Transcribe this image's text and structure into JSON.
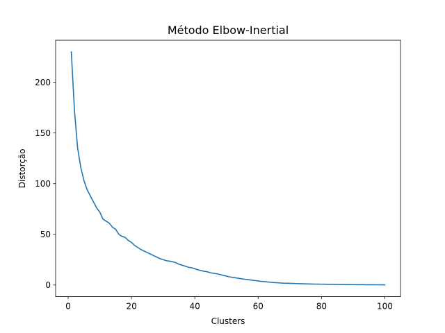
{
  "chart_data": {
    "type": "line",
    "title": "Método Elbow-Inertial",
    "xlabel": "Clusters",
    "ylabel": "Distorção",
    "xlim": [
      -3.95,
      104.95
    ],
    "ylim": [
      -11.5,
      241.5
    ],
    "xticks": [
      0,
      20,
      40,
      60,
      80,
      100
    ],
    "yticks": [
      0,
      50,
      100,
      150,
      200
    ],
    "grid": false,
    "series": [
      {
        "color": "#1f77b4",
        "x": [
          1,
          2,
          3,
          4,
          5,
          6,
          7,
          8,
          9,
          10,
          11,
          12,
          13,
          14,
          15,
          16,
          17,
          18,
          19,
          20,
          21,
          22,
          23,
          24,
          25,
          26,
          27,
          28,
          29,
          30,
          31,
          32,
          33,
          34,
          35,
          36,
          37,
          38,
          39,
          40,
          41,
          42,
          43,
          44,
          45,
          46,
          47,
          48,
          49,
          50,
          51,
          52,
          53,
          54,
          55,
          56,
          57,
          58,
          59,
          60,
          61,
          62,
          63,
          64,
          65,
          66,
          67,
          68,
          69,
          70,
          71,
          72,
          73,
          74,
          75,
          76,
          77,
          78,
          79,
          80,
          81,
          82,
          83,
          84,
          85,
          86,
          87,
          88,
          89,
          90,
          91,
          92,
          93,
          94,
          95,
          96,
          97,
          98,
          99,
          100
        ],
        "y": [
          230,
          172,
          135,
          116,
          103,
          94,
          88,
          82,
          76,
          72,
          65,
          63,
          61,
          57,
          55,
          50,
          48,
          47,
          44,
          42,
          39,
          37,
          35,
          33.5,
          32,
          30.5,
          29,
          27.5,
          26,
          25,
          24,
          23.5,
          23,
          22,
          20.5,
          19.5,
          18.5,
          17.5,
          17,
          16,
          15,
          14.2,
          13.5,
          13,
          12,
          11.5,
          11,
          10.3,
          9.5,
          8.7,
          8,
          7.5,
          7,
          6.5,
          6,
          5.6,
          5.2,
          4.8,
          4.4,
          4,
          3.6,
          3.3,
          3,
          2.7,
          2.4,
          2.2,
          2,
          1.8,
          1.7,
          1.6,
          1.5,
          1.4,
          1.3,
          1.2,
          1.1,
          1,
          0.95,
          0.9,
          0.85,
          0.8,
          0.75,
          0.7,
          0.65,
          0.6,
          0.55,
          0.5,
          0.47,
          0.44,
          0.41,
          0.38,
          0.35,
          0.32,
          0.3,
          0.28,
          0.26,
          0.24,
          0.22,
          0.2,
          0.19,
          0.18
        ]
      }
    ]
  }
}
